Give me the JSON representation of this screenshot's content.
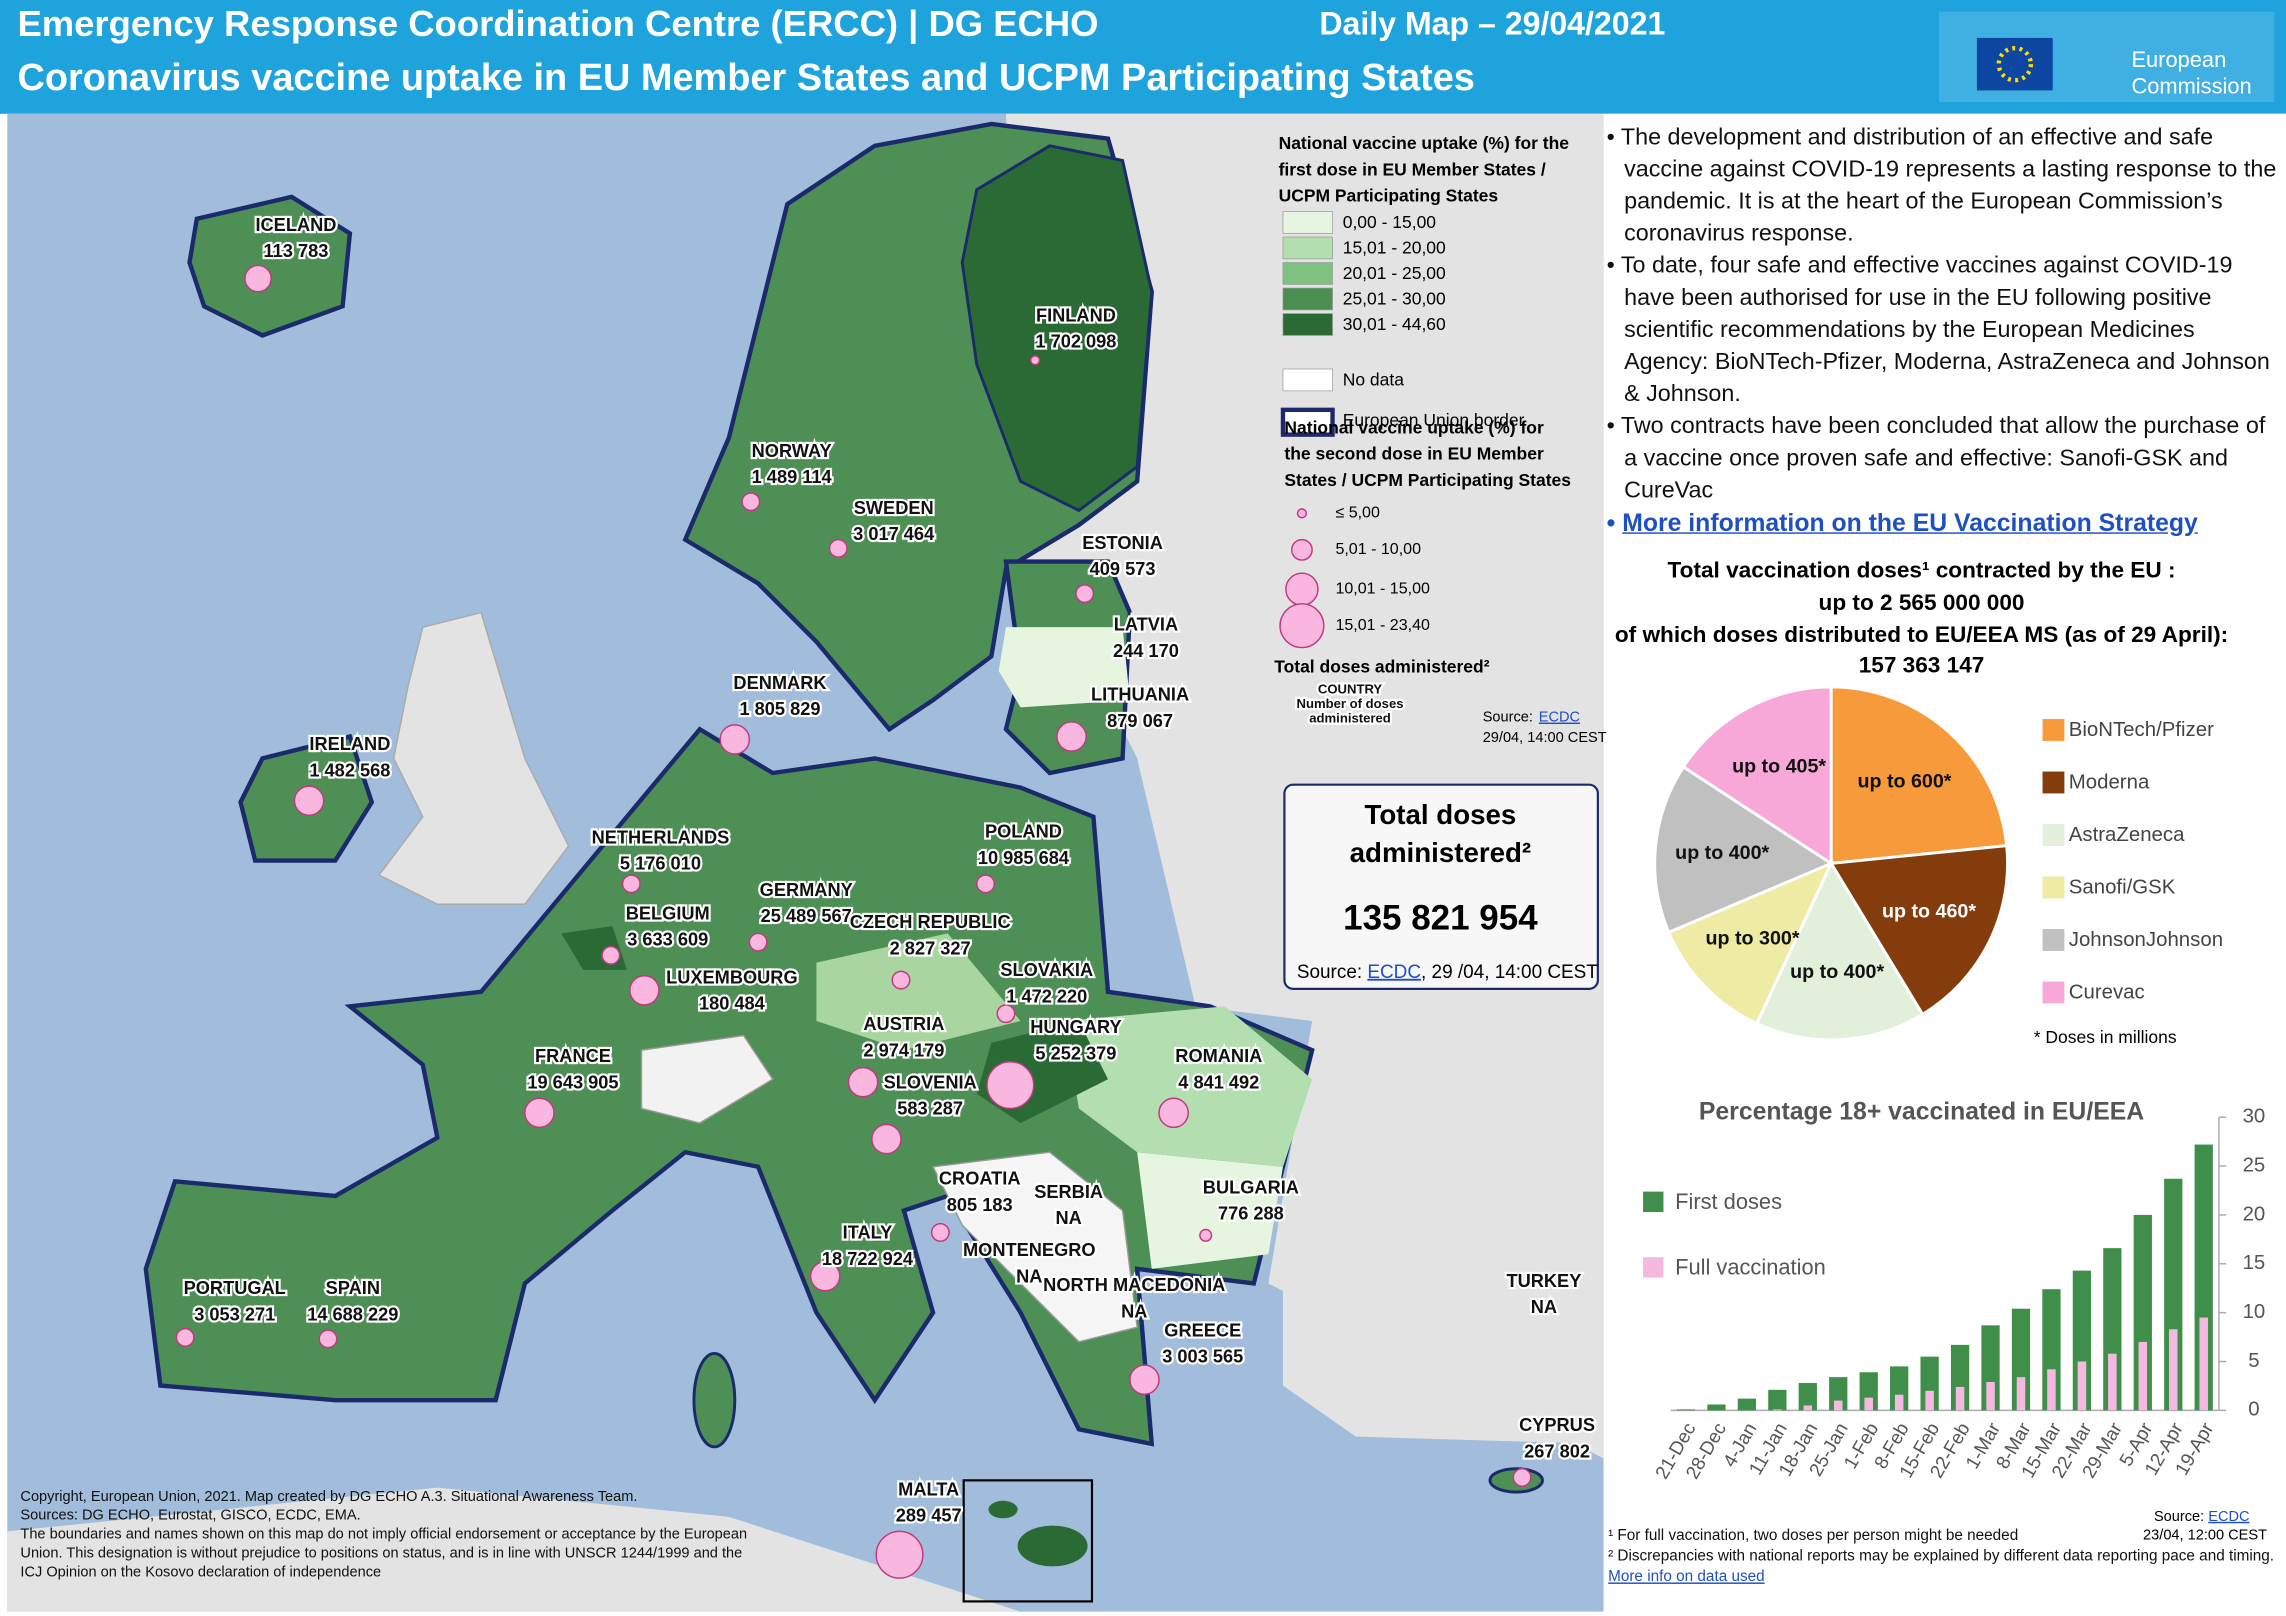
{
  "header": {
    "title": "Emergency Response Coordination Centre (ERCC) | DG ECHO",
    "date": "Daily Map – 29/04/2021",
    "subtitle": "Coronavirus vaccine uptake in EU Member States and UCPM Participating States",
    "logo": [
      "European",
      "Commission"
    ]
  },
  "map": {
    "countries": [
      {
        "name": "ICELAND",
        "doses": "113 783"
      },
      {
        "name": "FINLAND",
        "doses": "1 702 098"
      },
      {
        "name": "NORWAY",
        "doses": "1 489 114"
      },
      {
        "name": "SWEDEN",
        "doses": "3 017 464"
      },
      {
        "name": "ESTONIA",
        "doses": "409 573"
      },
      {
        "name": "LATVIA",
        "doses": "244 170"
      },
      {
        "name": "LITHUANIA",
        "doses": "879 067"
      },
      {
        "name": "DENMARK",
        "doses": "1 805 829"
      },
      {
        "name": "IRELAND",
        "doses": "1 482 568"
      },
      {
        "name": "NETHERLANDS",
        "doses": "5 176 010"
      },
      {
        "name": "BELGIUM",
        "doses": "3 633 609"
      },
      {
        "name": "GERMANY",
        "doses": "25 489 567"
      },
      {
        "name": "CZECH REPUBLIC",
        "doses": "2 827 327"
      },
      {
        "name": "POLAND",
        "doses": "10 985 684"
      },
      {
        "name": "LUXEMBOURG",
        "doses": "180 484"
      },
      {
        "name": "SLOVAKIA",
        "doses": "1 472 220"
      },
      {
        "name": "AUSTRIA",
        "doses": "2 974 179"
      },
      {
        "name": "HUNGARY",
        "doses": "5 252 379"
      },
      {
        "name": "ROMANIA",
        "doses": "4 841 492"
      },
      {
        "name": "FRANCE",
        "doses": "19 643 905"
      },
      {
        "name": "SLOVENIA",
        "doses": "583 287"
      },
      {
        "name": "CROATIA",
        "doses": "805 183"
      },
      {
        "name": "SERBIA",
        "doses": "NA"
      },
      {
        "name": "BULGARIA",
        "doses": "776 288"
      },
      {
        "name": "ITALY",
        "doses": "18 722 924"
      },
      {
        "name": "MONTENEGRO",
        "doses": "NA"
      },
      {
        "name": "NORTH MACEDONIA",
        "doses": "NA"
      },
      {
        "name": "TURKEY",
        "doses": "NA"
      },
      {
        "name": "PORTUGAL",
        "doses": "3 053 271"
      },
      {
        "name": "SPAIN",
        "doses": "14 688 229"
      },
      {
        "name": "GREECE",
        "doses": "3 003 565"
      },
      {
        "name": "CYPRUS",
        "doses": "267 802"
      },
      {
        "name": "MALTA",
        "doses": "289 457"
      }
    ],
    "legend": {
      "first_title": [
        "National vaccine uptake (%) for the",
        "first dose in EU Member States /",
        "UCPM Participating States"
      ],
      "first_items": [
        "0,00 - 15,00",
        "15,01 - 20,00",
        "20,01 - 25,00",
        "25,01 - 30,00",
        "30,01 - 44,60",
        "No data",
        "European  Union border"
      ],
      "second_title": [
        "National vaccine uptake (%) for",
        "the second dose in EU Member",
        "States / UCPM Participating States"
      ],
      "second_items": [
        "≤ 5,00",
        "5,01 - 10,00",
        "10,01 - 15,00",
        "15,01 - 23,40"
      ],
      "doses_title": "Total doses administered²",
      "doses_sample": [
        "COUNTRY",
        "Number of doses",
        "administered"
      ],
      "source": "Source:",
      "source_link": "ECDC",
      "source_date": [
        "29/04, 14:00 CEST"
      ]
    },
    "copyright": [
      "Copyright, European Union, 2021. Map created by DG ECHO A.3. Situational Awareness Team.",
      "Sources: DG ECHO, Eurostat, GISCO, ECDC, EMA.",
      "The boundaries and names shown on this map do not imply official endorsement or acceptance by the European Union. This designation is without prejudice to positions on status, and is in line with UNSCR 1244/1999 and the ICJ Opinion on the Kosovo declaration of independence"
    ]
  },
  "total_box": {
    "title": [
      "Total doses",
      "administered²"
    ],
    "value": "135 821 954",
    "source": "Source: ",
    "source_link": "ECDC",
    "source_date": ", 29 /04, 14:00 CEST"
  },
  "bullets": [
    "The development and distribution of an effective and safe vaccine against COVID-19 represents a lasting response to the pandemic. It is at the heart of the European Commission’s coronavirus response.",
    "To date, four safe and effective vaccines against COVID-19 have been authorised for use in the EU following positive scientific recommendations by the European Medicines Agency: BioNTech-Pfizer, Moderna, AstraZeneca and Johnson & Johnson.",
    "Two contracts have been concluded that allow the purchase of a vaccine once proven safe and effective: Sanofi-GSK and CureVac"
  ],
  "link": "More information on the EU Vaccination Strategy",
  "contracted": [
    "Total vaccination  doses¹ contracted by the EU :",
    "up to 2 565 000 000",
    "of which doses distributed to EU/EEA MS (as of 29 April):",
    "157 363 147"
  ],
  "chart_data": [
    {
      "type": "pie",
      "categories": [
        "BioNTech/Pfizer",
        "Moderna",
        "AstraZeneca",
        "Sanofi/GSK",
        "JohnsonJohnson",
        "Curevac"
      ],
      "values": [
        600,
        460,
        400,
        300,
        400,
        405
      ],
      "value_labels": [
        "up to 600*",
        "up to 460*",
        "up to 400*",
        "up to 300*",
        "up to 400*",
        "up to 405*"
      ],
      "colors": [
        "#f79a3c",
        "#843c0c",
        "#e2efda",
        "#eeeba4",
        "#c0c0c0",
        "#f7a8d8"
      ],
      "note": "* Doses in millions"
    },
    {
      "type": "bar",
      "title": "Percentage 18+ vaccinated in EU/EEA",
      "categories": [
        "21-Dec",
        "28-Dec",
        "4-Jan",
        "11-Jan",
        "18-Jan",
        "25-Jan",
        "1-Feb",
        "8-Feb",
        "15-Feb",
        "22-Feb",
        "1-Mar",
        "8-Mar",
        "15-Mar",
        "22-Mar",
        "29-Mar",
        "5-Apr",
        "12-Apr",
        "19-Apr"
      ],
      "series": [
        {
          "name": "First doses",
          "color": "#3f8f4a",
          "values": [
            0.1,
            0.6,
            1.2,
            2.1,
            2.8,
            3.4,
            3.9,
            4.5,
            5.5,
            6.7,
            8.7,
            10.4,
            12.4,
            14.3,
            16.6,
            20,
            23.7,
            27.2
          ]
        },
        {
          "name": "Full vaccination",
          "color": "#f5b8e0",
          "values": [
            0,
            0,
            0,
            0.1,
            0.5,
            1,
            1.3,
            1.6,
            2,
            2.4,
            2.9,
            3.4,
            4.2,
            5,
            5.8,
            7,
            8.3,
            9.5
          ]
        }
      ],
      "ylim": [
        0,
        30
      ],
      "yticks": [
        0,
        5,
        10,
        15,
        20,
        25,
        30
      ],
      "source": "Source: ",
      "source_link": "ECDC",
      "source_date": [
        "23/04, 12:00 CEST"
      ],
      "footnotes": [
        "¹ For full vaccination, two doses per person might be needed",
        "² Discrepancies with national reports may be explained by different data reporting pace and timing."
      ],
      "footnote_link": "More info on data used"
    }
  ]
}
